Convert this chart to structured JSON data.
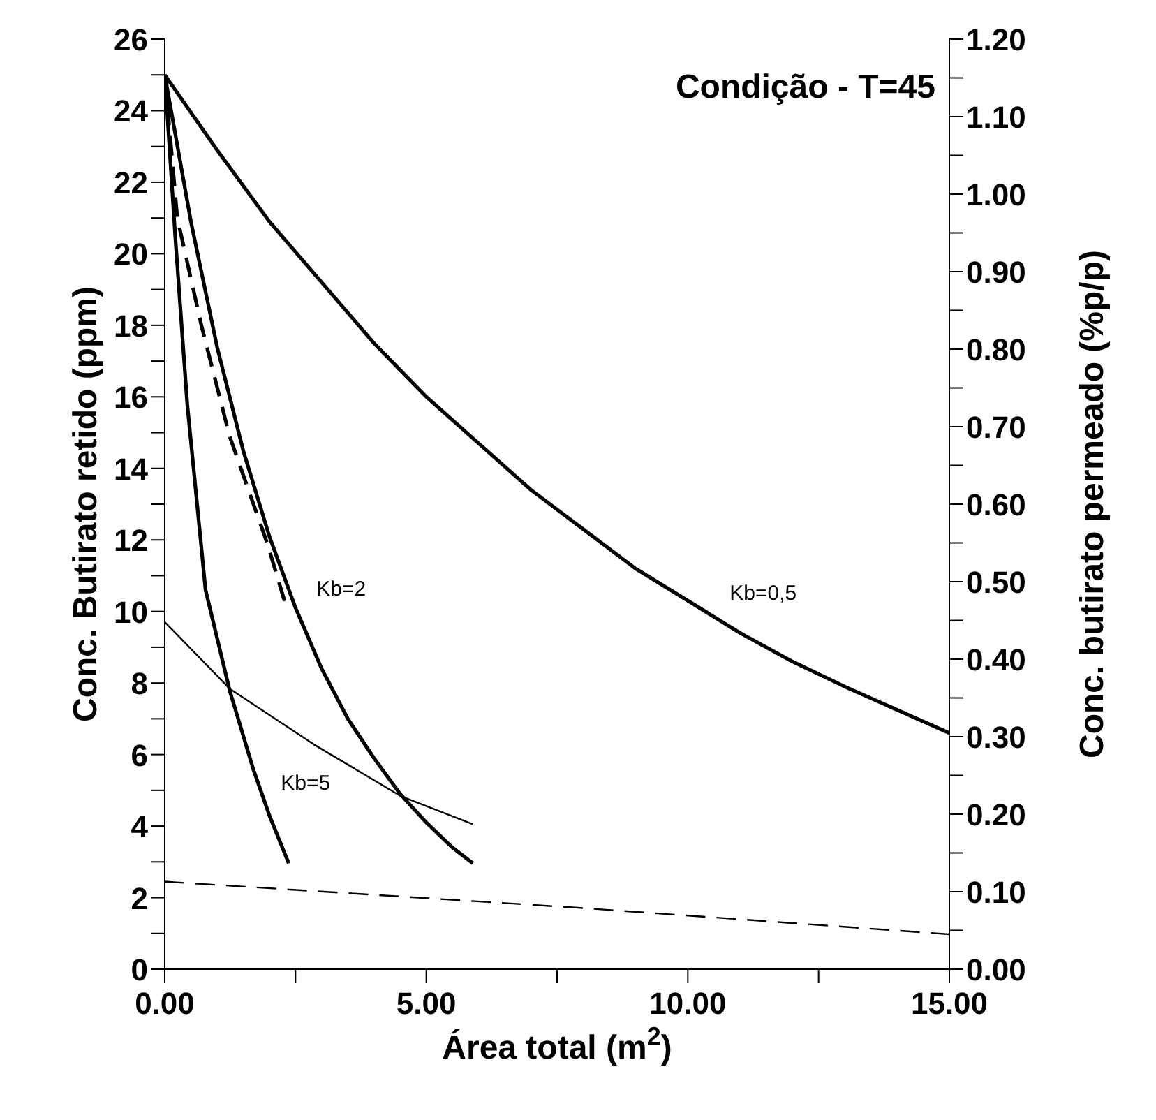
{
  "chart_data": {
    "type": "line",
    "title": "Condição - T=45",
    "xlabel": "Área total (m$^{2}$)",
    "ylabel": "Conc. Butirato retido (ppm)",
    "y2label": "Conc. butirato permeado (%p/p)",
    "series": [
      {
        "color": "#000000",
        "line_style": "solid",
        "x": [
          0,
          1,
          2,
          3,
          4,
          5,
          6,
          7,
          8,
          9,
          10,
          11,
          12,
          13,
          15
        ],
        "values": [
          25,
          22.9,
          20.9,
          19.2,
          17.5,
          16,
          14.7,
          13.4,
          12.3,
          11.2,
          10.3,
          9.4,
          8.6,
          7.9,
          6.6
        ]
      },
      {
        "color": "#000000",
        "line_style": "solid",
        "x": [
          0,
          0.5,
          1,
          1.5,
          2,
          2.5,
          3,
          3.5,
          4,
          4.5,
          5,
          5.5,
          5.89
        ],
        "values": [
          25,
          20.9,
          17.4,
          14.5,
          12.1,
          10.1,
          8.4,
          7,
          5.9,
          4.9,
          4.1,
          3.4,
          2.96
        ]
      },
      {
        "color": "#000000",
        "line_style": "dashed",
        "x": [
          0,
          0.24,
          0.7,
          1.24,
          1.96,
          2.31
        ],
        "values": [
          25,
          21,
          18,
          14.9,
          11.9,
          10.2
        ]
      },
      {
        "color": "#000000",
        "line_style": "solid",
        "x": [
          0,
          0.2,
          0.43,
          0.78,
          1.24,
          1.69,
          2,
          2.37
        ],
        "values": [
          25,
          20.5,
          15.8,
          10.6,
          7.8,
          5.6,
          4.3,
          2.96
        ]
      },
      {
        "color": "#000000",
        "line_style": "solid",
        "axis": "y2",
        "x": [
          0,
          1.24,
          2.85,
          4.52,
          5.89
        ],
        "values": [
          0.448,
          0.362,
          0.29,
          0.223,
          0.187
        ]
      },
      {
        "color": "#000000",
        "line_style": "dashed",
        "axis": "y2",
        "x": [
          0,
          7.96,
          15
        ],
        "values": [
          0.113,
          0.079,
          0.045
        ]
      }
    ],
    "annotations": [
      {
        "text": "Kb=2",
        "x": 2.58,
        "y": 10.2
      },
      {
        "text": "Kb=5",
        "x": 1.9,
        "y": 4.78
      },
      {
        "text": "Kb=0,5",
        "x": 10.48,
        "y": 10.1
      }
    ],
    "xlim": [
      0,
      15
    ],
    "xticks": [
      {
        "value": 0,
        "label": "0.00"
      },
      {
        "value": 2.5,
        "label": null
      },
      {
        "value": 5,
        "label": "5.00"
      },
      {
        "value": 7.5,
        "label": null
      },
      {
        "value": 10,
        "label": "10.00"
      },
      {
        "value": 12.5,
        "label": null
      },
      {
        "value": 15,
        "label": "15.00"
      }
    ],
    "ylim": [
      0,
      26
    ],
    "yticks": [
      0,
      {
        "value": 1,
        "label": null
      },
      2,
      {
        "value": 3,
        "label": null
      },
      4,
      {
        "value": 5,
        "label": null
      },
      6,
      {
        "value": 7,
        "label": null
      },
      8,
      {
        "value": 9,
        "label": null
      },
      10,
      {
        "value": 11,
        "label": null
      },
      12,
      {
        "value": 13,
        "label": null
      },
      14,
      {
        "value": 15,
        "label": null
      },
      16,
      {
        "value": 17,
        "label": null
      },
      18,
      {
        "value": 19,
        "label": null
      },
      20,
      {
        "value": 21,
        "label": null
      },
      22,
      {
        "value": 23,
        "label": null
      },
      24,
      {
        "value": 25,
        "label": null
      },
      26
    ],
    "y2lim": [
      0,
      1.2
    ],
    "y2ticks": [
      {
        "value": 0,
        "label": "0.00"
      },
      {
        "value": 0.05,
        "label": null
      },
      {
        "value": 0.1,
        "label": "0.10"
      },
      {
        "value": 0.15,
        "label": null
      },
      {
        "value": 0.2,
        "label": "0.20"
      },
      {
        "value": 0.25,
        "label": null
      },
      {
        "value": 0.3,
        "label": "0.30"
      },
      {
        "value": 0.35,
        "label": null
      },
      {
        "value": 0.4,
        "label": "0.40"
      },
      {
        "value": 0.45,
        "label": null
      },
      {
        "value": 0.5,
        "label": "0.50"
      },
      {
        "value": 0.55,
        "label": null
      },
      {
        "value": 0.6,
        "label": "0.60"
      },
      {
        "value": 0.65,
        "label": null
      },
      {
        "value": 0.7,
        "label": "0.70"
      },
      {
        "value": 0.75,
        "label": null
      },
      {
        "value": 0.8,
        "label": "0.80"
      },
      {
        "value": 0.85,
        "label": null
      },
      {
        "value": 0.9,
        "label": "0.90"
      },
      {
        "value": 0.95,
        "label": null
      },
      {
        "value": 1,
        "label": "1.00"
      },
      {
        "value": 1.05,
        "label": null
      },
      {
        "value": 1.1,
        "label": "1.10"
      },
      {
        "value": 1.15,
        "label": null
      },
      {
        "value": 1.2,
        "label": "1.20"
      }
    ],
    "grid": false,
    "marker": "none"
  }
}
